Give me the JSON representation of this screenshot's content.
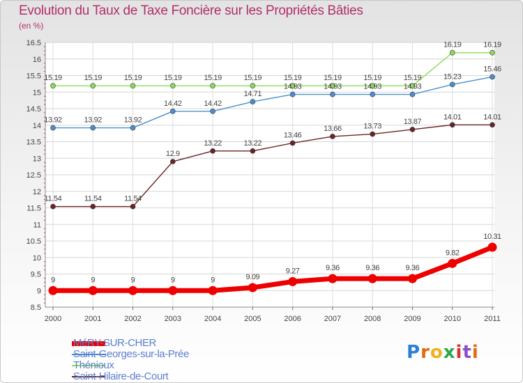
{
  "chart_data": {
    "type": "line",
    "title": "Evolution du Taux de Taxe Foncière sur les Propriétés Bâties",
    "unit_label": "(en %)",
    "x": [
      "2000",
      "2001",
      "2002",
      "2003",
      "2004",
      "2005",
      "2006",
      "2007",
      "2008",
      "2009",
      "2010",
      "2011"
    ],
    "ylim": [
      8.5,
      16.5
    ],
    "yticks": [
      "8.5",
      "9",
      "9.5",
      "10",
      "10.5",
      "11",
      "11.5",
      "12",
      "12.5",
      "13",
      "13.5",
      "14",
      "14.5",
      "15",
      "15.5",
      "16",
      "16.5"
    ],
    "grid": true,
    "legend_position": "bottom-left",
    "series": [
      {
        "name": "Saint-Hilaire-de-Court",
        "color": "#6b2424",
        "values": [
          11.54,
          11.54,
          11.54,
          12.9,
          13.22,
          13.22,
          13.46,
          13.66,
          13.73,
          13.87,
          14.01,
          14.01
        ],
        "labels": [
          "11.54",
          "11.54",
          "11.54",
          "12.9",
          "13.22",
          "13.22",
          "13.46",
          "13.66",
          "13.73",
          "13.87",
          "14.01",
          "14.01"
        ]
      },
      {
        "name": "Thénioux",
        "color": "#88dd55",
        "values": [
          15.19,
          15.19,
          15.19,
          15.19,
          15.19,
          15.19,
          15.19,
          15.19,
          15.19,
          15.19,
          16.19,
          16.19
        ],
        "labels": [
          "15.19",
          "15.19",
          "15.19",
          "15.19",
          "15.19",
          "15.19",
          "15.19",
          "15.19",
          "15.19",
          "15.19",
          "16.19",
          "16.19"
        ]
      },
      {
        "name": "Saint-Georges-sur-la-Prée",
        "color": "#4a8fce",
        "values": [
          13.92,
          13.92,
          13.92,
          14.42,
          14.42,
          14.71,
          14.93,
          14.93,
          14.93,
          14.93,
          15.23,
          15.46
        ],
        "labels": [
          "13.92",
          "13.92",
          "13.92",
          "14.42",
          "14.42",
          "14.71",
          "14.93",
          "14.93",
          "14.93",
          "14.93",
          "15.23",
          "15.46"
        ]
      },
      {
        "name": "MéRY-SUR-CHER",
        "color": "#ee0000",
        "values": [
          9,
          9,
          9,
          9,
          9,
          9.09,
          9.27,
          9.36,
          9.36,
          9.36,
          9.82,
          10.31
        ],
        "labels": [
          "9",
          "9",
          "9",
          "9",
          "9",
          "9.09",
          "9.27",
          "9.36",
          "9.36",
          "9.36",
          "9.82",
          "10.31"
        ]
      }
    ],
    "legend": [
      "MéRY-SUR-CHER",
      "Saint-Georges-sur-la-Prée",
      "Thénioux",
      "Saint-Hilaire-de-Court"
    ]
  },
  "logo": {
    "letters": [
      "P",
      "r",
      "o",
      "x",
      "i",
      "t",
      "i"
    ],
    "colors": [
      "#2b7fd4",
      "#e06a10",
      "#f2b01e",
      "#2aa84a",
      "#d93030",
      "#8a4fc4",
      "#e06a10"
    ]
  }
}
